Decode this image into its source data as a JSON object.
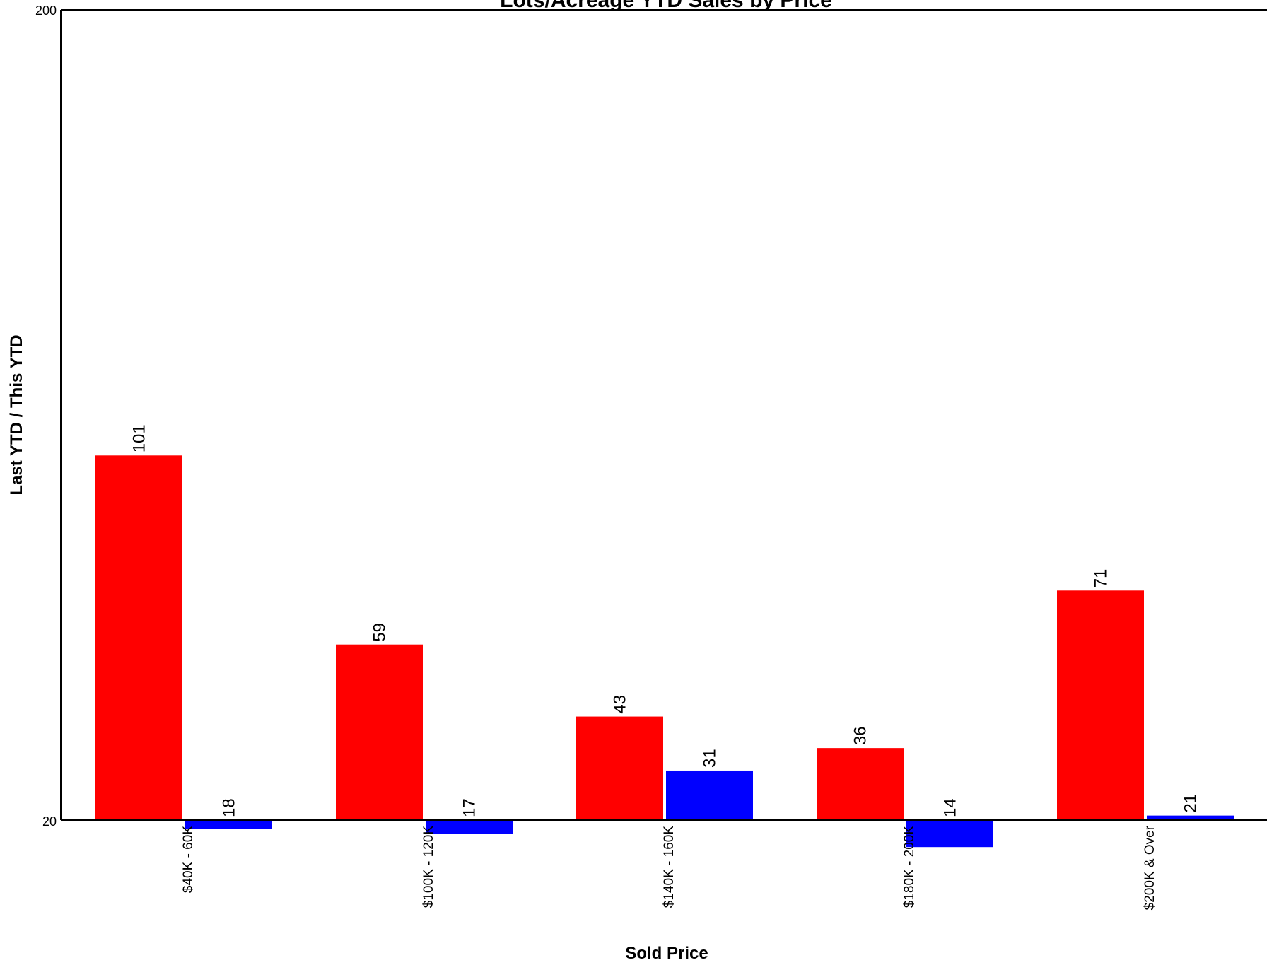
{
  "chart_data": {
    "type": "bar",
    "title": "Lots/Acreage YTD Sales by Price",
    "xlabel": "Sold Price",
    "ylabel": "Last YTD / This YTD",
    "categories": [
      "$40K - 60K",
      "$100K - 120K",
      "$140K - 160K",
      "$180K - 200K",
      "$200K & Over"
    ],
    "series": [
      {
        "color": "#ff0000",
        "values": [
          101,
          59,
          43,
          36,
          71
        ]
      },
      {
        "color": "#0000ff",
        "values": [
          18,
          17,
          31,
          14,
          21
        ]
      }
    ],
    "ylim": [
      20,
      200
    ],
    "yticks": [
      "200",
      "20"
    ],
    "baseline": 20,
    "grid": false,
    "legend": "none"
  }
}
